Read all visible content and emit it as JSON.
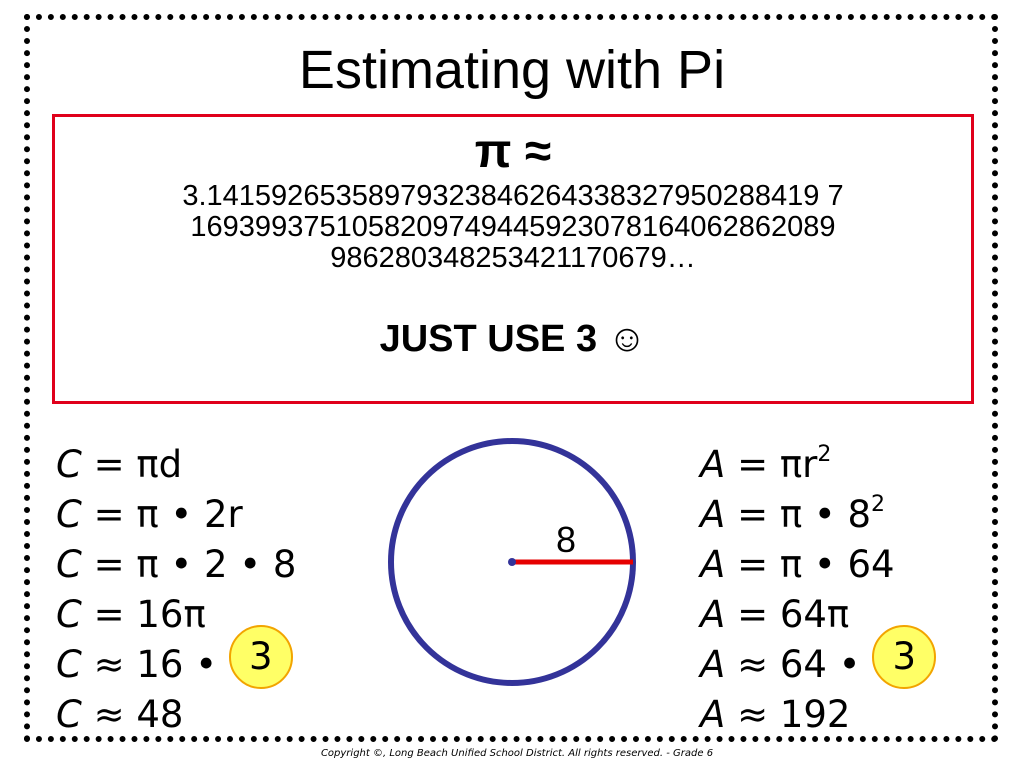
{
  "slide": {
    "title": "Estimating with Pi",
    "pi_box": {
      "heading": "π ≈",
      "digits": "3.14159265358979323846264338327950288419716939937510582097494459230781640628620899862803482534211706 79…",
      "digits_lines": [
        "3.14159265358979323846264338327950288419 7",
        "1693993751058209749445923078164062862089",
        "986280348253421170679…"
      ],
      "tagline": "JUST USE 3  ☺"
    },
    "circumference": {
      "lines": [
        {
          "var": "C",
          "rest": " = πd"
        },
        {
          "var": "C",
          "rest": " = π • 2r"
        },
        {
          "var": "C",
          "rest": " = π • 2 • 8"
        },
        {
          "var": "C",
          "rest": " = 16π"
        },
        {
          "var": "C",
          "rest": " ≈ 16 •",
          "circled": "3"
        },
        {
          "var": "C",
          "rest": " ≈ 48"
        }
      ]
    },
    "area": {
      "line1_var": "A",
      "line1_rest": " = πr",
      "line1_exp": "2",
      "line2_var": "A",
      "line2_rest": " = π • 8",
      "line2_exp": "2",
      "line3_var": "A",
      "line3_rest": " = π • 64",
      "line4_var": "A",
      "line4_rest": " = 64π",
      "line5_var": "A",
      "line5_rest": " ≈ 64 •",
      "line5_circled": "3",
      "line6_var": "A",
      "line6_rest": " ≈ 192"
    },
    "diagram": {
      "radius_label": "8",
      "circle_color": "#333399",
      "radius_color": "#e60000"
    },
    "copyright": "Copyright ©, Long Beach Unified School District.  All rights reserved. - Grade 6",
    "colors": {
      "box_border": "#e0001b",
      "circled_fill": "#ffff66",
      "circled_border": "#f2a400"
    }
  }
}
